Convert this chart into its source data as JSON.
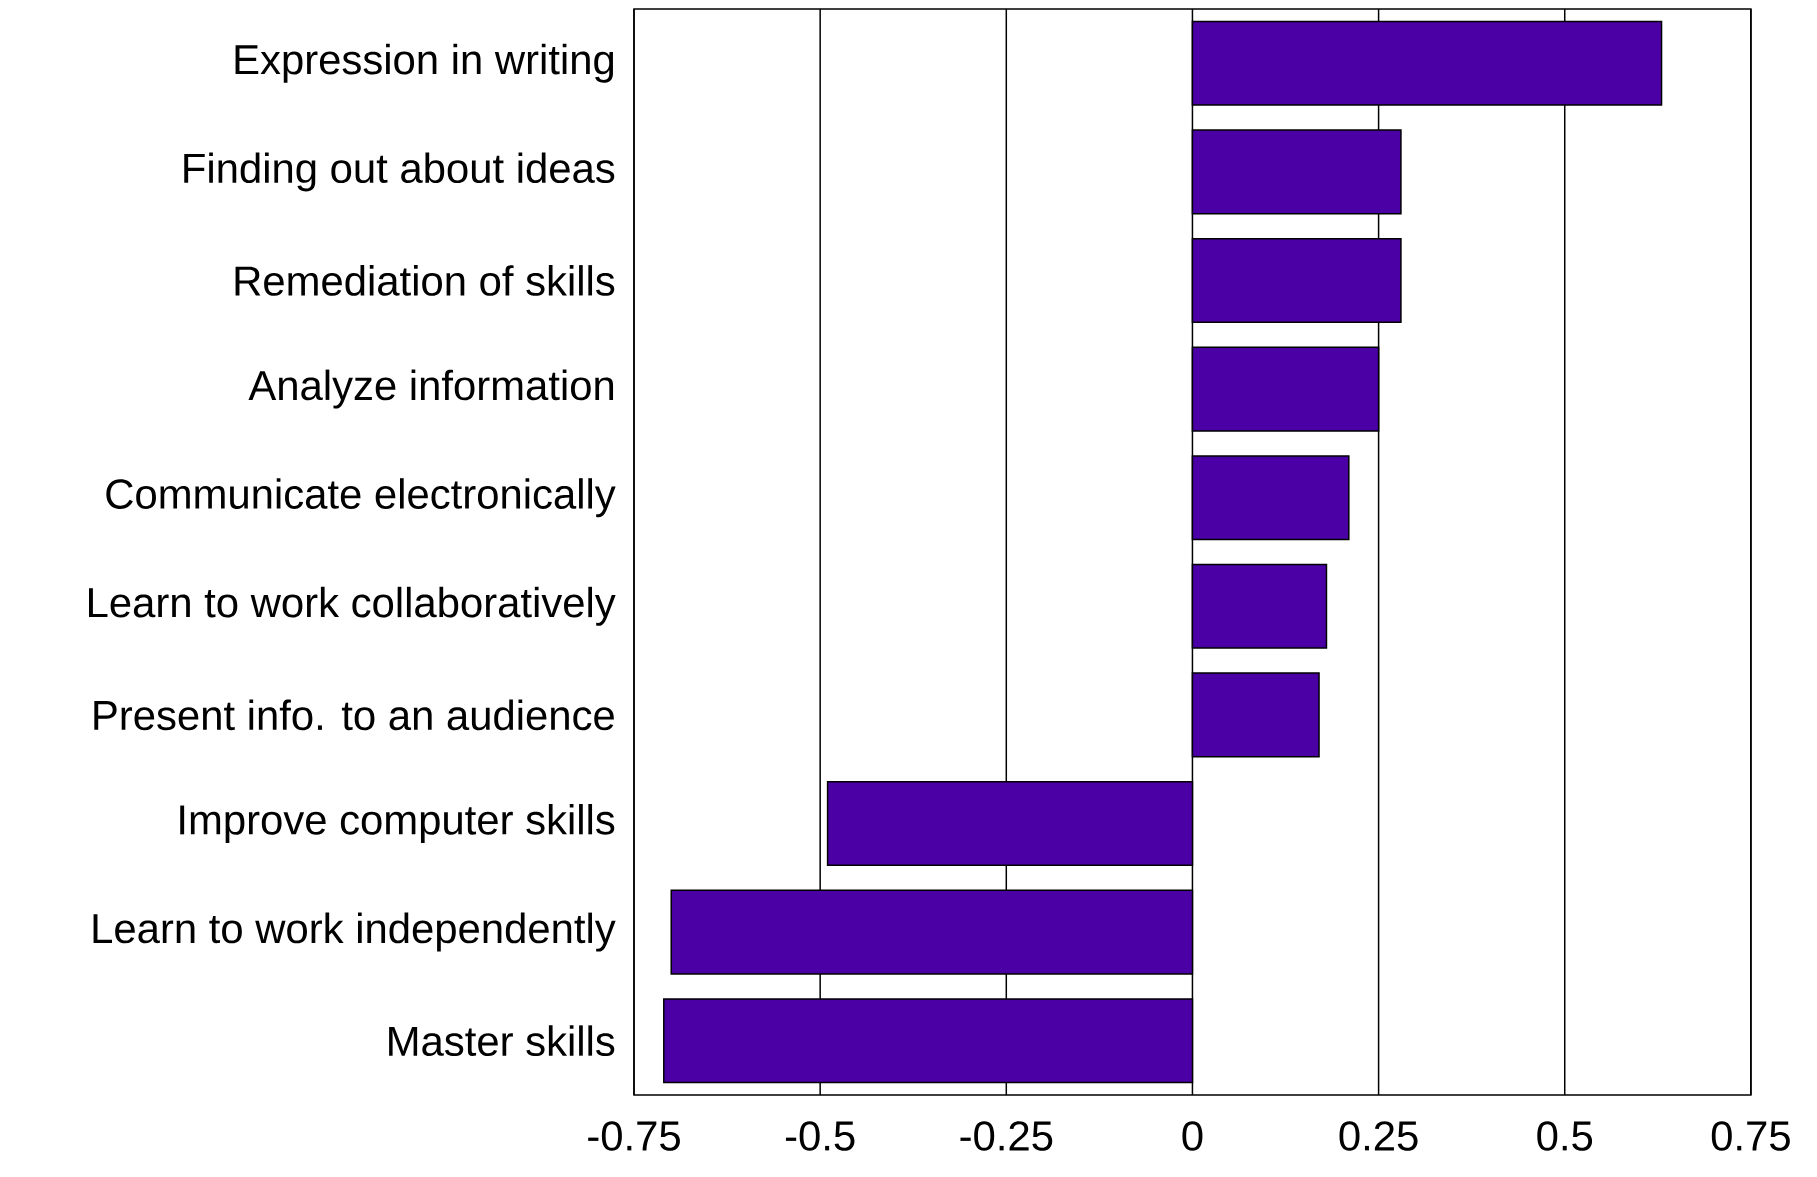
{
  "chart_data": {
    "type": "bar",
    "orientation": "horizontal",
    "categories": [
      "Expression in writing",
      "Finding out about ideas",
      "Remediation of skills",
      "Analyze information",
      "Communicate electronically",
      "Learn to work collaboratively",
      "Present info. to an audience",
      "Improve computer skills",
      "Learn to work independently",
      "Master skills"
    ],
    "values": [
      0.63,
      0.28,
      0.28,
      0.25,
      0.21,
      0.18,
      0.17,
      -0.49,
      -0.7,
      -0.71
    ],
    "color": "#4b00a6",
    "xlim": [
      -0.75,
      0.75
    ],
    "xticks": [
      -0.75,
      -0.5,
      -0.25,
      0,
      0.25,
      0.5,
      0.75
    ],
    "grid": "x"
  }
}
